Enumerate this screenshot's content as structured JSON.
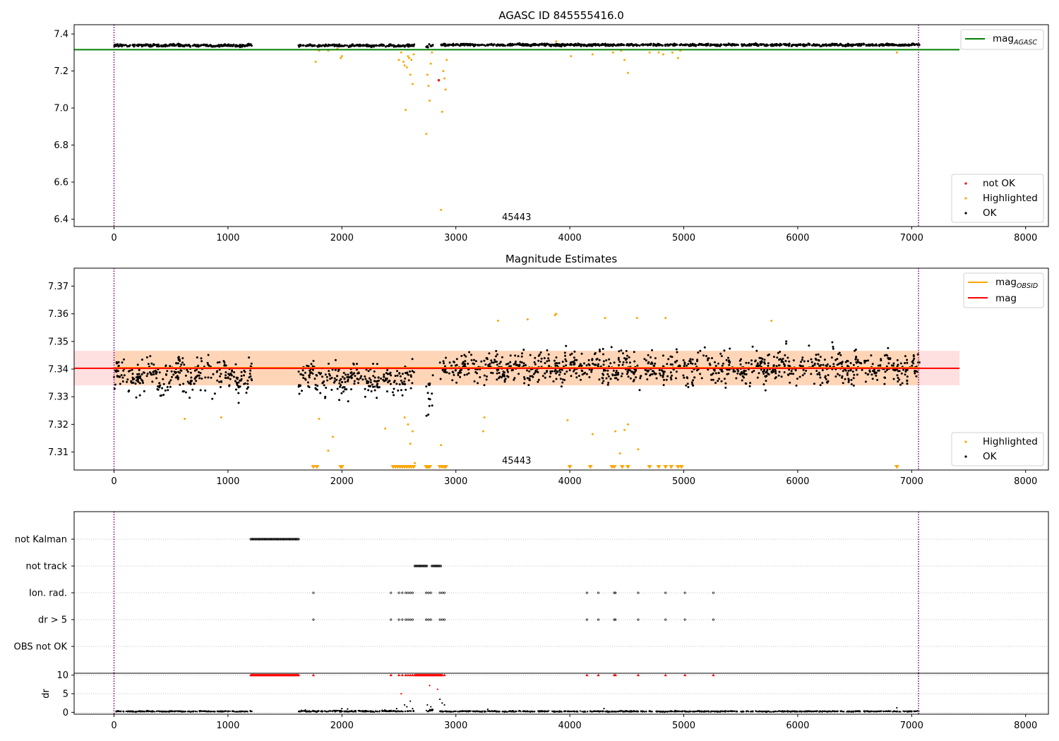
{
  "chart_data": [
    {
      "type": "scatter",
      "title": "AGASC ID 845555416.0",
      "xlim": [
        -350,
        8200
      ],
      "ylim": [
        6.36,
        7.45
      ],
      "xticks": [
        0,
        1000,
        2000,
        3000,
        4000,
        5000,
        6000,
        7000,
        8000
      ],
      "yticks": [
        6.4,
        6.6,
        6.8,
        7.0,
        7.2,
        7.4
      ],
      "ytick_labels": [
        "6.4",
        "6.6",
        "6.8",
        "7.0",
        "7.2",
        "7.4"
      ],
      "annotation": "45443",
      "vlines": [
        0,
        7060
      ],
      "hline": {
        "name": "mag_AGASC",
        "value": 7.315,
        "x_range": [
          -350,
          7420
        ],
        "color": "#008000"
      },
      "legend_lines": [
        {
          "main": "mag",
          "sub": "AGASC",
          "color": "#008000"
        }
      ],
      "legend_points": [
        {
          "label": "not OK",
          "color": "#ff0000"
        },
        {
          "label": "Highlighted",
          "color": "#ffa500"
        },
        {
          "label": "OK",
          "color": "#000000"
        }
      ],
      "ok_segments": [
        {
          "x": [
            0,
            1210
          ],
          "y_center": 7.338,
          "y_spread": 0.014
        },
        {
          "x": [
            1620,
            2640
          ],
          "y_center": 7.337,
          "y_spread": 0.012
        },
        {
          "x": [
            2740,
            2800
          ],
          "y_center": 7.335,
          "y_spread": 0.02
        },
        {
          "x": [
            2860,
            7070
          ],
          "y_center": 7.341,
          "y_spread": 0.012
        }
      ],
      "highlighted_points": [
        [
          1770,
          7.25
        ],
        [
          1800,
          7.31
        ],
        [
          1880,
          7.31
        ],
        [
          1990,
          7.27
        ],
        [
          2000,
          7.28
        ],
        [
          1960,
          7.32
        ],
        [
          2500,
          7.26
        ],
        [
          2520,
          7.3
        ],
        [
          2540,
          7.25
        ],
        [
          2550,
          7.23
        ],
        [
          2560,
          6.99
        ],
        [
          2570,
          7.22
        ],
        [
          2580,
          7.28
        ],
        [
          2590,
          7.27
        ],
        [
          2600,
          7.18
        ],
        [
          2610,
          7.26
        ],
        [
          2620,
          7.13
        ],
        [
          2630,
          7.29
        ],
        [
          2740,
          6.86
        ],
        [
          2750,
          7.18
        ],
        [
          2760,
          7.12
        ],
        [
          2770,
          7.04
        ],
        [
          2780,
          7.24
        ],
        [
          2790,
          7.3
        ],
        [
          2870,
          6.45
        ],
        [
          2880,
          6.98
        ],
        [
          2890,
          7.2
        ],
        [
          2900,
          7.16
        ],
        [
          2910,
          7.1
        ],
        [
          2920,
          7.26
        ],
        [
          3880,
          7.36
        ],
        [
          4010,
          7.28
        ],
        [
          4200,
          7.29
        ],
        [
          4380,
          7.3
        ],
        [
          4450,
          7.31
        ],
        [
          4480,
          7.26
        ],
        [
          4510,
          7.19
        ],
        [
          4700,
          7.3
        ],
        [
          4780,
          7.3
        ],
        [
          4820,
          7.29
        ],
        [
          4900,
          7.3
        ],
        [
          4950,
          7.27
        ],
        [
          4970,
          7.31
        ],
        [
          6870,
          7.3
        ]
      ],
      "not_ok_points": [
        [
          2850,
          7.15
        ]
      ]
    },
    {
      "type": "scatter",
      "title": "Magnitude Estimates",
      "xlim": [
        -350,
        8200
      ],
      "ylim": [
        7.3035,
        7.3765
      ],
      "xticks": [
        0,
        1000,
        2000,
        3000,
        4000,
        5000,
        6000,
        7000,
        8000
      ],
      "yticks": [
        7.31,
        7.32,
        7.33,
        7.34,
        7.35,
        7.36,
        7.37
      ],
      "ytick_labels": [
        "7.31",
        "7.32",
        "7.33",
        "7.34",
        "7.35",
        "7.36",
        "7.37"
      ],
      "annotation": "45443",
      "vlines": [
        0,
        7060
      ],
      "mag": {
        "value": 7.3403,
        "band": [
          7.3341,
          7.3466
        ],
        "x_range": [
          -350,
          7420
        ],
        "color": "#ff0000"
      },
      "mag_obsid": {
        "value": 7.3405,
        "band": [
          7.3342,
          7.3466
        ],
        "x_range": [
          0,
          7070
        ],
        "color": "#ffa500"
      },
      "legend_lines": [
        {
          "main": "mag",
          "sub": "OBSID",
          "color": "#ffa500"
        },
        {
          "main": "mag",
          "sub": "",
          "color": "#ff0000"
        }
      ],
      "legend_points": [
        {
          "label": "Highlighted",
          "color": "#ffa500"
        },
        {
          "label": "OK",
          "color": "#000000"
        }
      ],
      "ok_segments": [
        {
          "x": [
            0,
            1210
          ],
          "y_center": 7.3375,
          "y_spread": 0.013
        },
        {
          "x": [
            1620,
            2640
          ],
          "y_center": 7.3365,
          "y_spread": 0.012
        },
        {
          "x": [
            2740,
            2800
          ],
          "y_center": 7.333,
          "y_spread": 0.018
        },
        {
          "x": [
            2860,
            7070
          ],
          "y_center": 7.3405,
          "y_spread": 0.012
        }
      ],
      "highlighted_points": [
        [
          620,
          7.322
        ],
        [
          940,
          7.3225
        ],
        [
          1800,
          7.322
        ],
        [
          1880,
          7.3105
        ],
        [
          1920,
          7.3155
        ],
        [
          2380,
          7.3185
        ],
        [
          2550,
          7.3225
        ],
        [
          2580,
          7.32
        ],
        [
          2600,
          7.313
        ],
        [
          2620,
          7.3175
        ],
        [
          2640,
          7.306
        ],
        [
          2870,
          7.3125
        ],
        [
          3240,
          7.3175
        ],
        [
          3250,
          7.3225
        ],
        [
          3370,
          7.3575
        ],
        [
          3630,
          7.358
        ],
        [
          3870,
          7.3595
        ],
        [
          3880,
          7.36
        ],
        [
          3980,
          7.3215
        ],
        [
          4200,
          7.3165
        ],
        [
          4310,
          7.3585
        ],
        [
          4400,
          7.3175
        ],
        [
          4440,
          7.3095
        ],
        [
          4480,
          7.318
        ],
        [
          4510,
          7.32
        ],
        [
          4590,
          7.3585
        ],
        [
          4600,
          7.311
        ],
        [
          4840,
          7.3585
        ],
        [
          5770,
          7.3575
        ]
      ],
      "lower_limit_markers": [
        1750,
        1780,
        1990,
        2000,
        2450,
        2470,
        2490,
        2510,
        2530,
        2550,
        2570,
        2590,
        2610,
        2630,
        2740,
        2750,
        2760,
        2770,
        2860,
        2880,
        2900,
        2910,
        4000,
        4180,
        4370,
        4390,
        4460,
        4510,
        4700,
        4780,
        4840,
        4890,
        4950,
        4980,
        6870
      ]
    },
    {
      "type": "scatter",
      "title": "",
      "xlim": [
        -350,
        8200
      ],
      "categories": [
        "not Kalman",
        "not track",
        "Ion. rad.",
        "dr > 5",
        "OBS not OK"
      ],
      "vlines": [
        0,
        7060
      ],
      "flag_ranges": {
        "not Kalman": [
          [
            1200,
            1620
          ]
        ],
        "not track": [
          [
            2640,
            2750
          ],
          [
            2790,
            2870
          ]
        ]
      },
      "flag_points": {
        "Ion. rad.": [
          1750,
          2430,
          2500,
          2530,
          2560,
          2580,
          2600,
          2620,
          2740,
          2760,
          2780,
          2860,
          2880,
          2900,
          4150,
          4250,
          4390,
          4400,
          4600,
          4840,
          5010,
          5260
        ],
        "dr > 5": [
          1750,
          2430,
          2500,
          2530,
          2560,
          2580,
          2600,
          2620,
          2740,
          2760,
          2780,
          2860,
          2880,
          2900,
          4150,
          4250,
          4390,
          4400,
          4600,
          4840,
          5010,
          5260
        ]
      }
    },
    {
      "type": "scatter",
      "title": "",
      "ylabel": "dr",
      "xlim": [
        -350,
        8200
      ],
      "ylim": [
        -0.5,
        10.5
      ],
      "xticks": [
        0,
        1000,
        2000,
        3000,
        4000,
        5000,
        6000,
        7000,
        8000
      ],
      "yticks": [
        0,
        5,
        10
      ],
      "ytick_labels": [
        "0",
        "5",
        "10"
      ],
      "vlines": [
        0,
        7060
      ],
      "clipped_marker_ranges": [
        [
          1200,
          1620
        ],
        [
          2640,
          2880
        ]
      ],
      "clipped_markers": [
        1750,
        2430,
        2500,
        2530,
        2560,
        2580,
        2600,
        2620,
        2900,
        4150,
        4250,
        4390,
        4400,
        4600,
        4840,
        5010,
        5260
      ],
      "ok_segments": [
        {
          "x": [
            0,
            1210
          ],
          "y_center": 0.25,
          "y_spread": 0.3
        },
        {
          "x": [
            1620,
            2640
          ],
          "y_center": 0.3,
          "y_spread": 0.4
        },
        {
          "x": [
            2740,
            2800
          ],
          "y_center": 0.5,
          "y_spread": 0.8
        },
        {
          "x": [
            2860,
            7070
          ],
          "y_center": 0.25,
          "y_spread": 0.3
        }
      ],
      "elevated_points": [
        [
          2000,
          1.0
        ],
        [
          2050,
          0.9
        ],
        [
          2480,
          1.0
        ],
        [
          2520,
          5.0
        ],
        [
          2550,
          2.0
        ],
        [
          2570,
          1.5
        ],
        [
          2600,
          3.0
        ],
        [
          2620,
          1.0
        ],
        [
          2750,
          2.0
        ],
        [
          2770,
          7.2
        ],
        [
          2780,
          1.5
        ],
        [
          2840,
          6.2
        ],
        [
          2860,
          3.5
        ],
        [
          2880,
          2.5
        ],
        [
          2900,
          2.0
        ],
        [
          3280,
          0.8
        ],
        [
          4300,
          1.0
        ],
        [
          6870,
          1.2
        ]
      ]
    }
  ]
}
